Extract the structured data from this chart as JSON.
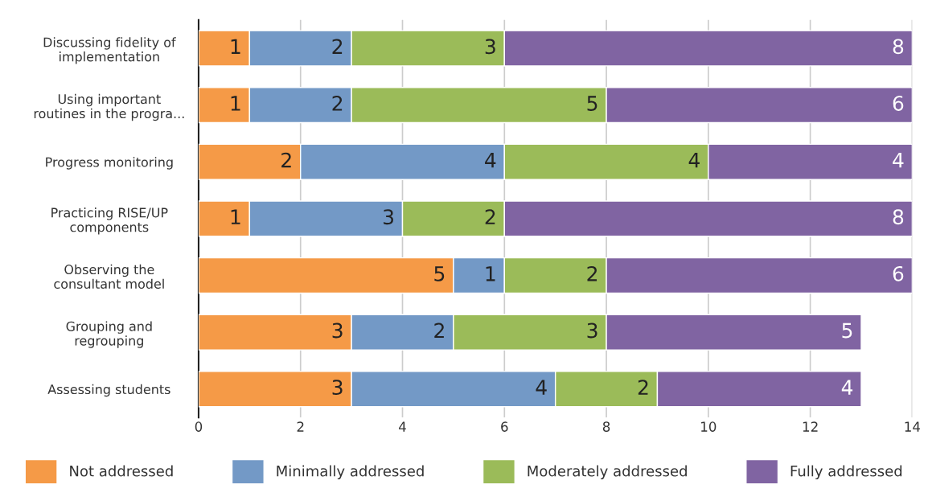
{
  "chart_data": {
    "type": "bar",
    "orientation": "horizontal",
    "stacked": true,
    "categories": [
      "Discussing fidelity of\nimplementation",
      "Using important\nroutines in the progra...",
      "Progress monitoring",
      "Practicing RISE/UP\ncomponents",
      "Observing the\nconsultant model",
      "Grouping and\nregrouping",
      "Assessing students"
    ],
    "series": [
      {
        "name": "Not addressed",
        "color": "#f59a47",
        "values": [
          1,
          1,
          2,
          1,
          5,
          3,
          3
        ]
      },
      {
        "name": "Minimally addressed",
        "color": "#7399c6",
        "values": [
          2,
          2,
          4,
          3,
          1,
          2,
          4
        ]
      },
      {
        "name": "Moderately addressed",
        "color": "#9bbb59",
        "values": [
          3,
          5,
          4,
          2,
          2,
          3,
          2
        ]
      },
      {
        "name": "Fully addressed",
        "color": "#8064a2",
        "values": [
          8,
          6,
          4,
          8,
          6,
          5,
          4
        ]
      }
    ],
    "xlim": [
      0,
      14
    ],
    "xticks": [
      0,
      2,
      4,
      6,
      8,
      10,
      12,
      14
    ],
    "grid": "x",
    "legend": "bottom",
    "data_labels": true
  }
}
